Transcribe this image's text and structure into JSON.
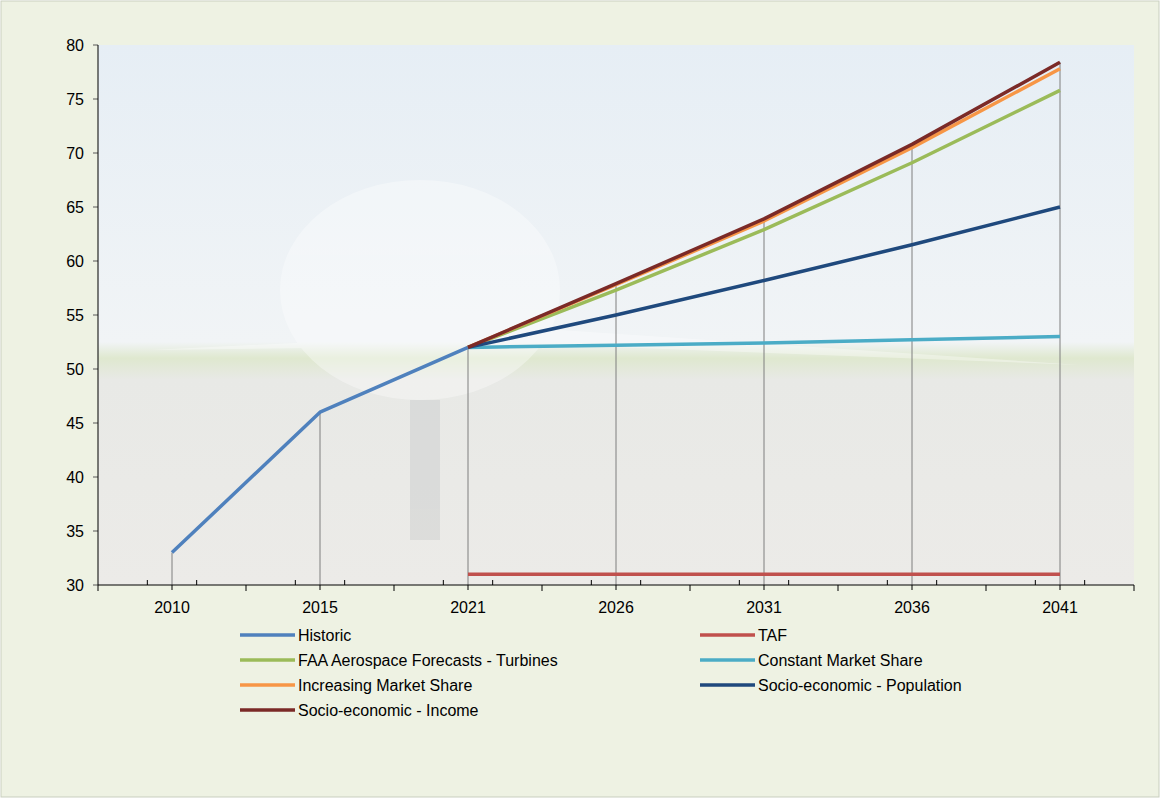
{
  "chart_data": {
    "type": "line",
    "categories": [
      "2010",
      "2015",
      "2021",
      "2026",
      "2031",
      "2036",
      "2041"
    ],
    "series": [
      {
        "name": "Historic",
        "color": "#4f81bd",
        "values": [
          33,
          46,
          52,
          null,
          null,
          null,
          null
        ]
      },
      {
        "name": "TAF",
        "color": "#c0504d",
        "values": [
          null,
          null,
          31,
          31,
          31,
          31,
          31
        ]
      },
      {
        "name": "FAA Aerospace Forecasts - Turbines",
        "color": "#9bbb59",
        "values": [
          null,
          null,
          52,
          57.3,
          62.9,
          69.1,
          75.8
        ]
      },
      {
        "name": "Constant Market Share",
        "color": "#4bacc6",
        "values": [
          null,
          null,
          52,
          52.2,
          52.4,
          52.7,
          53
        ]
      },
      {
        "name": "Increasing Market Share",
        "color": "#f79646",
        "values": [
          null,
          null,
          52,
          57.8,
          63.7,
          70.5,
          77.8
        ]
      },
      {
        "name": "Socio-economic - Population",
        "color": "#1f497d",
        "values": [
          null,
          null,
          52,
          55,
          58.2,
          61.5,
          65
        ]
      },
      {
        "name": "Socio-economic - Income",
        "color": "#7b2a27",
        "values": [
          null,
          null,
          52,
          57.9,
          63.9,
          70.8,
          78.4
        ]
      }
    ],
    "ylim": [
      30,
      80
    ],
    "yticks": [
      30,
      35,
      40,
      45,
      50,
      55,
      60,
      65,
      70,
      75,
      80
    ],
    "grid": false,
    "legend": "bottom"
  }
}
